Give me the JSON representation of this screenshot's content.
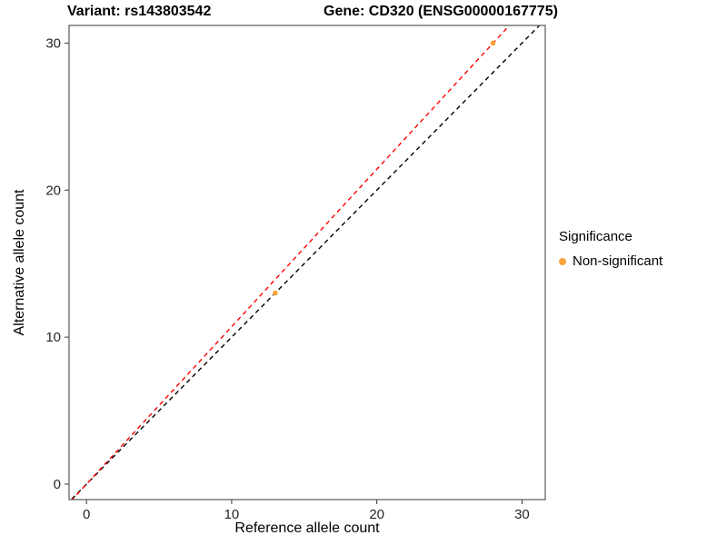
{
  "titles": {
    "left": "Variant: rs143803542",
    "right": "Gene: CD320 (ENSG00000167775)"
  },
  "chart_data": {
    "type": "scatter",
    "title": "Variant: rs143803542 / Gene: CD320 (ENSG00000167775)",
    "xlabel": "Reference allele count",
    "ylabel": "Alternative allele count",
    "xlim": [
      -1.2,
      31.6
    ],
    "ylim": [
      -1.05,
      31.2
    ],
    "xticks": [
      0,
      10,
      20,
      30
    ],
    "yticks": [
      0,
      10,
      20,
      30
    ],
    "grid": false,
    "legend_position": "right",
    "point_color": "#FAA43A",
    "point_radius": 2.8,
    "points": [
      {
        "x": 13,
        "y": 13,
        "series": "Non-significant"
      },
      {
        "x": 28,
        "y": 30,
        "series": "Non-significant"
      }
    ],
    "lines": [
      {
        "name": "identity-line",
        "slope": 1,
        "intercept": 0,
        "color": "#000000",
        "style": "dashed"
      },
      {
        "name": "regression-line",
        "slope": 1.071,
        "intercept": 0,
        "color": "#FF0000",
        "style": "dashed"
      }
    ],
    "legend": {
      "title": "Significance",
      "items": [
        {
          "label": "Non-significant",
          "color": "#FAA43A"
        }
      ]
    },
    "panel_border_color": "#595959",
    "tick_color": "#333333"
  }
}
